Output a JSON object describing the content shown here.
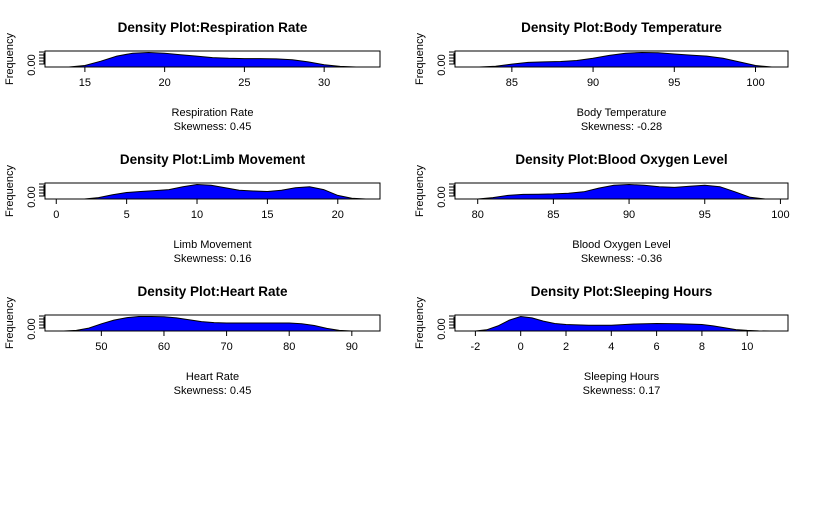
{
  "figure": {
    "panels": [
      {
        "title": "Density Plot:Respiration Rate",
        "xlabel": "Respiration Rate",
        "skewness": "Skewness: 0.45",
        "ylabel": "Frequency",
        "ytick": "0.00"
      },
      {
        "title": "Density Plot:Body Temperature",
        "xlabel": "Body Temperature",
        "skewness": "Skewness: -0.28",
        "ylabel": "Frequency",
        "ytick": "0.00"
      },
      {
        "title": "Density Plot:Limb Movement",
        "xlabel": "Limb Movement",
        "skewness": "Skewness: 0.16",
        "ylabel": "Frequency",
        "ytick": "0.00"
      },
      {
        "title": "Density Plot:Blood Oxygen Level",
        "xlabel": "Blood Oxygen Level",
        "skewness": "Skewness: -0.36",
        "ylabel": "Frequency",
        "ytick": "0.00"
      },
      {
        "title": "Density Plot:Heart Rate",
        "xlabel": "Heart Rate",
        "skewness": "Skewness: 0.45",
        "ylabel": "Frequency",
        "ytick": "0.00"
      },
      {
        "title": "Density Plot:Sleeping Hours",
        "xlabel": "Sleeping Hours",
        "skewness": "Skewness: 0.17",
        "ylabel": "Frequency",
        "ytick": "0.00"
      }
    ]
  },
  "chart_data": [
    {
      "type": "area",
      "title": "Density Plot:Respiration Rate",
      "xlabel": "Respiration Rate",
      "ylabel": "Frequency",
      "xlim": [
        12.5,
        33.5
      ],
      "xticks": [
        15,
        20,
        25,
        30
      ],
      "ytick_labels": [
        "0.00"
      ],
      "fill_color": "#0000ff",
      "skewness": 0.45,
      "x": [
        14,
        15,
        16,
        17,
        18,
        19,
        20,
        21,
        22,
        23,
        24,
        25,
        26,
        27,
        28,
        29,
        30,
        31,
        32
      ],
      "y": [
        0.0,
        0.01,
        0.04,
        0.075,
        0.095,
        0.1,
        0.095,
        0.085,
        0.075,
        0.065,
        0.06,
        0.058,
        0.058,
        0.056,
        0.05,
        0.035,
        0.015,
        0.004,
        0.0
      ]
    },
    {
      "type": "area",
      "title": "Density Plot:Body Temperature",
      "xlabel": "Body Temperature",
      "ylabel": "Frequency",
      "xlim": [
        81.5,
        102
      ],
      "xticks": [
        85,
        90,
        95,
        100
      ],
      "ytick_labels": [
        "0.00"
      ],
      "fill_color": "#0000ff",
      "skewness": -0.28,
      "x": [
        83,
        84,
        85,
        86,
        87,
        88,
        89,
        90,
        91,
        92,
        93,
        94,
        95,
        96,
        97,
        98,
        99,
        100,
        101
      ],
      "y": [
        0.0,
        0.005,
        0.02,
        0.032,
        0.035,
        0.038,
        0.045,
        0.06,
        0.08,
        0.095,
        0.1,
        0.098,
        0.09,
        0.082,
        0.075,
        0.06,
        0.035,
        0.01,
        0.0
      ]
    },
    {
      "type": "area",
      "title": "Density Plot:Limb Movement",
      "xlabel": "Limb Movement",
      "ylabel": "Frequency",
      "xlim": [
        -0.8,
        23
      ],
      "xticks": [
        0,
        5,
        10,
        15,
        20
      ],
      "ytick_labels": [
        "0.00"
      ],
      "fill_color": "#0000ff",
      "skewness": 0.16,
      "x": [
        2,
        3,
        4,
        5,
        6,
        7,
        8,
        9,
        10,
        11,
        12,
        13,
        14,
        15,
        16,
        17,
        18,
        19,
        20,
        21,
        22
      ],
      "y": [
        0.0,
        0.01,
        0.03,
        0.045,
        0.052,
        0.058,
        0.065,
        0.085,
        0.1,
        0.095,
        0.078,
        0.06,
        0.055,
        0.052,
        0.06,
        0.078,
        0.085,
        0.065,
        0.025,
        0.005,
        0.0
      ]
    },
    {
      "type": "area",
      "title": "Density Plot:Blood Oxygen Level",
      "xlabel": "Blood Oxygen Level",
      "ylabel": "Frequency",
      "xlim": [
        78.5,
        100.5
      ],
      "xticks": [
        80,
        85,
        90,
        95,
        100
      ],
      "ytick_labels": [
        "0.00"
      ],
      "fill_color": "#0000ff",
      "skewness": -0.36,
      "x": [
        80,
        81,
        82,
        83,
        84,
        85,
        86,
        87,
        88,
        89,
        90,
        91,
        92,
        93,
        94,
        95,
        96,
        97,
        98,
        99
      ],
      "y": [
        0.0,
        0.01,
        0.025,
        0.032,
        0.033,
        0.035,
        0.04,
        0.05,
        0.075,
        0.095,
        0.1,
        0.095,
        0.085,
        0.08,
        0.088,
        0.095,
        0.085,
        0.05,
        0.012,
        0.0
      ]
    },
    {
      "type": "area",
      "title": "Density Plot:Heart Rate",
      "xlabel": "Heart Rate",
      "ylabel": "Frequency",
      "xlim": [
        41,
        94.5
      ],
      "xticks": [
        50,
        60,
        70,
        80,
        90
      ],
      "ytick_labels": [
        "0.00"
      ],
      "fill_color": "#0000ff",
      "skewness": 0.45,
      "x": [
        44,
        46,
        48,
        50,
        52,
        54,
        56,
        58,
        60,
        62,
        64,
        66,
        68,
        70,
        72,
        74,
        76,
        78,
        80,
        82,
        84,
        86,
        88,
        90
      ],
      "y": [
        0.0,
        0.004,
        0.02,
        0.05,
        0.075,
        0.092,
        0.1,
        0.1,
        0.098,
        0.09,
        0.078,
        0.065,
        0.058,
        0.055,
        0.055,
        0.055,
        0.055,
        0.055,
        0.055,
        0.05,
        0.038,
        0.018,
        0.004,
        0.0
      ]
    },
    {
      "type": "area",
      "title": "Density Plot:Sleeping Hours",
      "xlabel": "Sleeping Hours",
      "ylabel": "Frequency",
      "xlim": [
        -2.9,
        11.8
      ],
      "xticks": [
        -2,
        0,
        2,
        4,
        6,
        8,
        10
      ],
      "ytick_labels": [
        "0.00"
      ],
      "fill_color": "#0000ff",
      "skewness": 0.17,
      "x": [
        -2,
        -1.5,
        -1,
        -0.5,
        0,
        0.5,
        1,
        1.5,
        2,
        3,
        4,
        5,
        6,
        7,
        8,
        8.5,
        9,
        9.5,
        10,
        10.5,
        11
      ],
      "y": [
        0.0,
        0.008,
        0.035,
        0.075,
        0.1,
        0.09,
        0.068,
        0.052,
        0.045,
        0.04,
        0.04,
        0.048,
        0.052,
        0.05,
        0.045,
        0.035,
        0.022,
        0.01,
        0.004,
        0.001,
        0.0
      ]
    }
  ]
}
